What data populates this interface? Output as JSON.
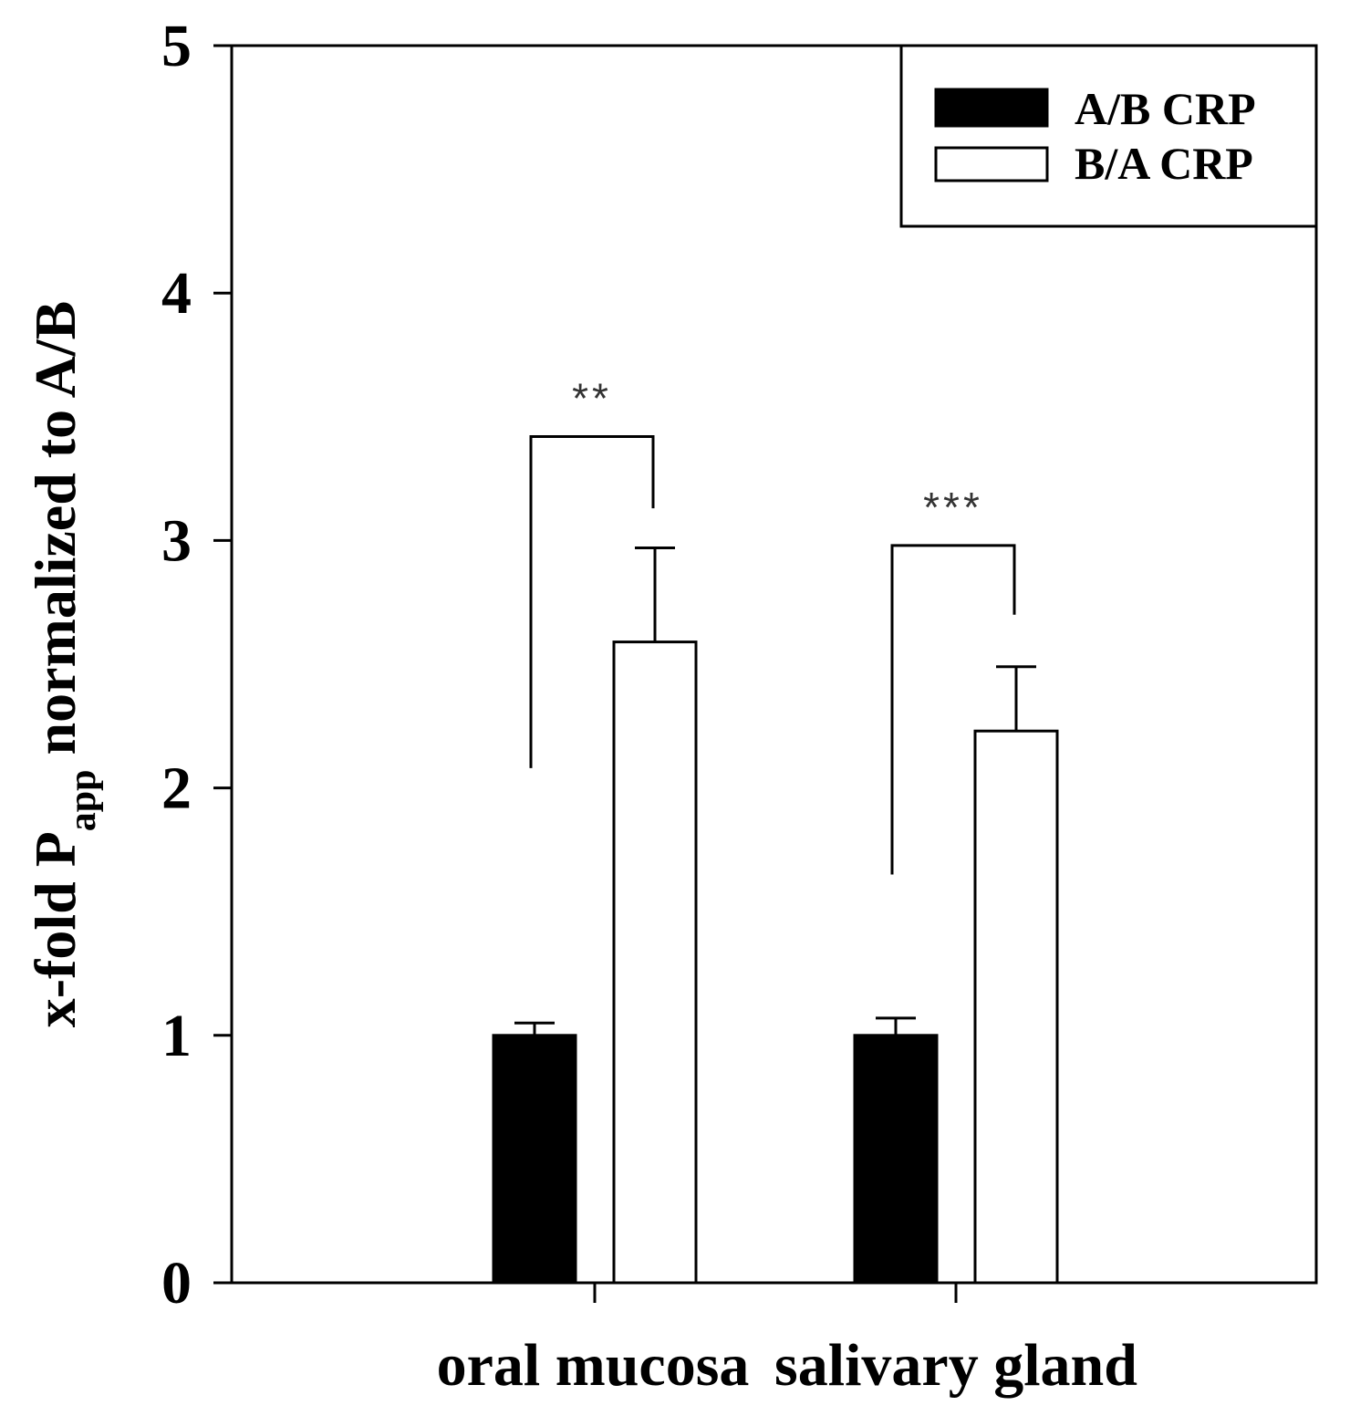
{
  "chart_data": {
    "type": "bar",
    "categories": [
      "oral mucosa",
      "salivary gland"
    ],
    "series": [
      {
        "name": "A/B CRP",
        "color": "#000000",
        "values": [
          1.0,
          1.0
        ],
        "errors": [
          0.05,
          0.07
        ]
      },
      {
        "name": "B/A CRP",
        "color": "#ffffff",
        "values": [
          2.59,
          2.23
        ],
        "errors": [
          0.38,
          0.26
        ]
      }
    ],
    "ylabel": {
      "prefix": "x-fold P",
      "subscript": "app",
      "suffix": " normalized to A/B"
    },
    "ylim": [
      0,
      5
    ],
    "yticks": [
      "0",
      "1",
      "2",
      "3",
      "4",
      "5"
    ],
    "legend": {
      "position": "top-right",
      "entries": [
        "A/B CRP",
        "B/A CRP"
      ]
    },
    "significance": [
      {
        "category": "oral mucosa",
        "label": "**",
        "left_end": 2.08,
        "top": 3.42,
        "right_end": 3.13
      },
      {
        "category": "salivary gland",
        "label": "***",
        "left_end": 1.65,
        "top": 2.98,
        "right_end": 2.7
      }
    ],
    "grid": false
  }
}
